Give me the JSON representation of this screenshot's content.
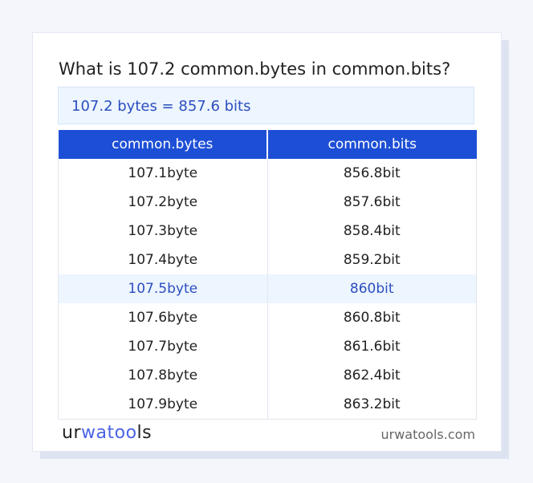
{
  "title": "What is 107.2 common.bytes in common.bits?",
  "result": "107.2 bytes = 857.6 bits",
  "table": {
    "headers": [
      "common.bytes",
      "common.bits"
    ],
    "rows": [
      [
        "107.1byte",
        "856.8bit"
      ],
      [
        "107.2byte",
        "857.6bit"
      ],
      [
        "107.3byte",
        "858.4bit"
      ],
      [
        "107.4byte",
        "859.2bit"
      ],
      [
        "107.5byte",
        "860bit"
      ],
      [
        "107.6byte",
        "860.8bit"
      ],
      [
        "107.7byte",
        "861.6bit"
      ],
      [
        "107.8byte",
        "862.4bit"
      ],
      [
        "107.9byte",
        "863.2bit"
      ]
    ],
    "highlighted_row": 4
  },
  "footer": {
    "logo": "urwatools",
    "logo_parts": [
      "ur",
      "wat",
      "oo",
      "ls"
    ],
    "url": "urwatools.com"
  },
  "colors": {
    "accent": "#1d4fd6",
    "highlight_text": "#2c4fbf",
    "highlight_bg": "#edf5ff"
  }
}
